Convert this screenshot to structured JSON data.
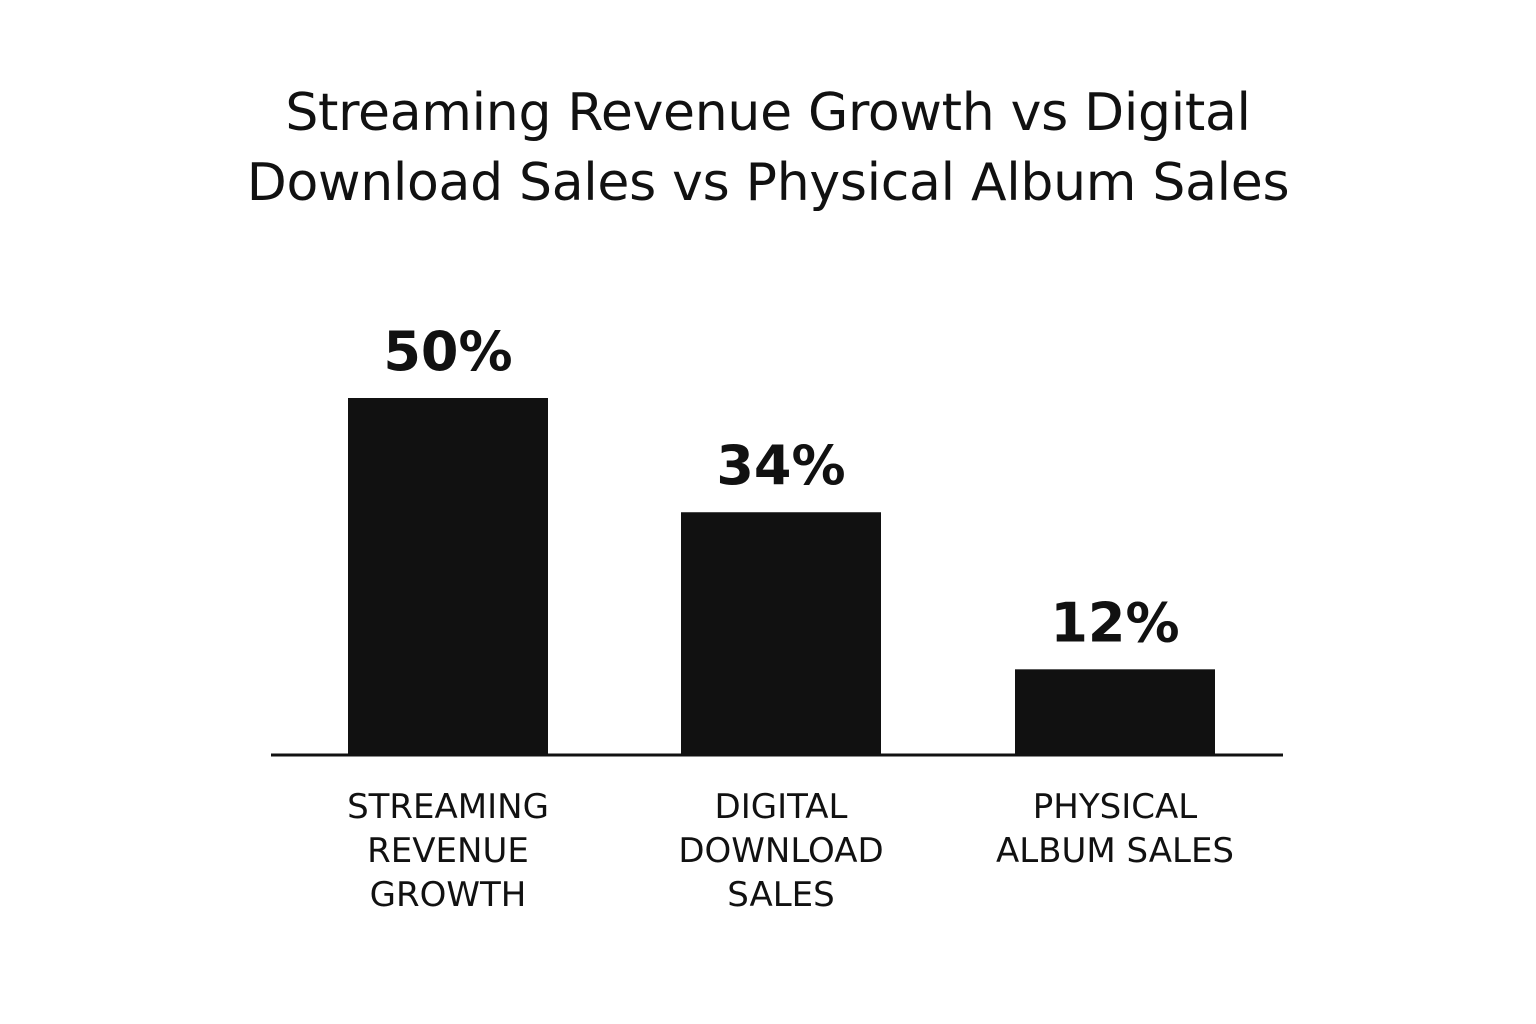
{
  "chart_data": {
    "type": "bar",
    "title_lines": [
      "Streaming Revenue Growth vs Digital",
      "Download Sales vs Physical Album Sales"
    ],
    "categories": [
      [
        "STREAMING",
        "REVENUE",
        "GROWTH"
      ],
      [
        "DIGITAL",
        "DOWNLOAD",
        "SALES"
      ],
      [
        "PHYSICAL",
        "ALBUM SALES"
      ]
    ],
    "values": [
      50,
      34,
      12
    ],
    "value_labels": [
      "50%",
      "34%",
      "12%"
    ],
    "ylim": [
      0,
      50
    ],
    "grid": false,
    "legend": "none",
    "bar_color": "#111111"
  }
}
